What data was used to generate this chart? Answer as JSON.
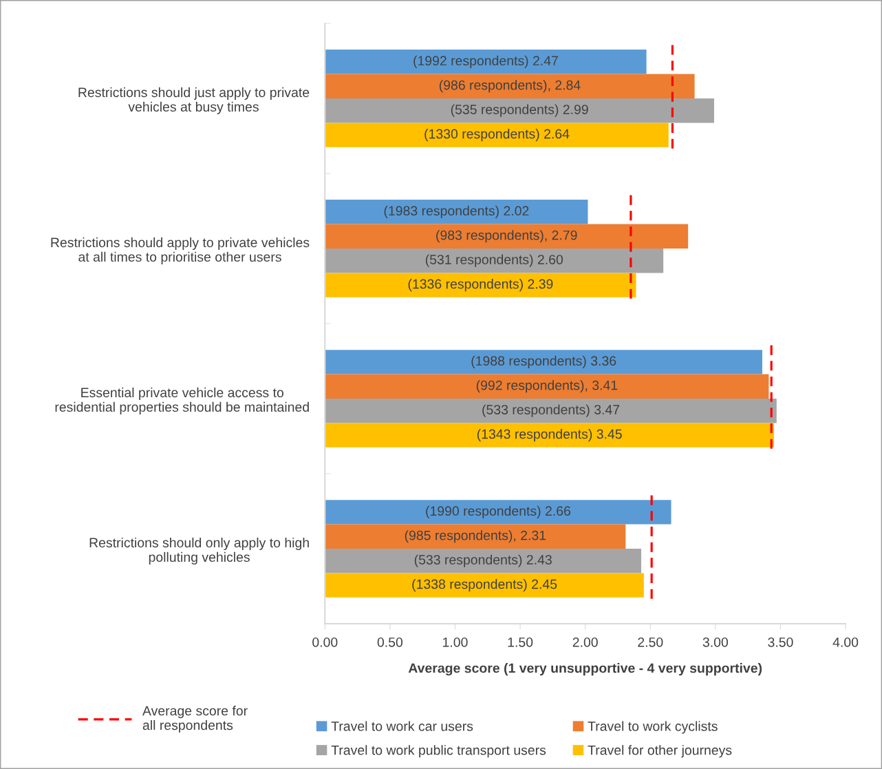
{
  "chart_data": {
    "type": "bar",
    "orientation": "horizontal",
    "categories": [
      "Restrictions should just apply to private\nvehicles at busy times",
      "Restrictions should apply to private vehicles\nat all times to prioritise other users",
      "Essential private vehicle access to\nresidential properties should be maintained",
      "Restrictions should only apply to high\npolluting vehicles"
    ],
    "series": [
      {
        "name": "Travel to work car users",
        "color": "#5b9bd5",
        "values": [
          2.47,
          2.02,
          3.36,
          2.66
        ],
        "value_labels": [
          "(1992 respondents) 2.47",
          "(1983 respondents) 2.02",
          "(1988 respondents) 3.36",
          "(1990 respondents) 2.66"
        ]
      },
      {
        "name": "Travel to work cyclists",
        "color": "#ed7d31",
        "values": [
          2.84,
          2.79,
          3.41,
          2.31
        ],
        "value_labels": [
          "(986 respondents), 2.84",
          "(983 respondents), 2.79",
          "(992 respondents), 3.41",
          "(985 respondents), 2.31"
        ]
      },
      {
        "name": "Travel to work public transport users",
        "color": "#a5a5a5",
        "values": [
          2.99,
          2.6,
          3.47,
          2.43
        ],
        "value_labels": [
          "(535 respondents) 2.99",
          "(531 respondents) 2.60",
          "(533 respondents) 3.47",
          "(533 respondents) 2.43"
        ]
      },
      {
        "name": "Travel for other journeys",
        "color": "#ffc000",
        "values": [
          2.64,
          2.39,
          3.45,
          2.45
        ],
        "value_labels": [
          "(1330 respondents) 2.64",
          "(1336 respondents) 2.39",
          "(1343 respondents) 3.45",
          "(1338 respondents) 2.45"
        ]
      }
    ],
    "ref_lines": [
      {
        "axis": "x",
        "value": 2.67,
        "label": "Average score for\nall respondents",
        "color": "#ff0000",
        "line_style": "dashed"
      },
      {
        "axis": "x",
        "value": 2.35,
        "color": "#ff0000",
        "line_style": "dashed"
      },
      {
        "axis": "x",
        "value": 3.43,
        "color": "#ff0000",
        "line_style": "dashed"
      },
      {
        "axis": "x",
        "value": 2.51,
        "color": "#ff0000",
        "line_style": "dashed"
      }
    ],
    "xlim": [
      0,
      4
    ],
    "xticks": [
      {
        "value": 0,
        "label": "0.00"
      },
      {
        "value": 0.5,
        "label": "0.50"
      },
      {
        "value": 1,
        "label": "1.00"
      },
      {
        "value": 1.5,
        "label": "1.50"
      },
      {
        "value": 2,
        "label": "2.00"
      },
      {
        "value": 2.5,
        "label": "2.50"
      },
      {
        "value": 3,
        "label": "3.00"
      },
      {
        "value": 3.5,
        "label": "3.50"
      },
      {
        "value": 4,
        "label": "4.00"
      }
    ],
    "xlabel": "Average score (1 very unsupportive - 4 very supportive)",
    "legend": "bottom"
  }
}
